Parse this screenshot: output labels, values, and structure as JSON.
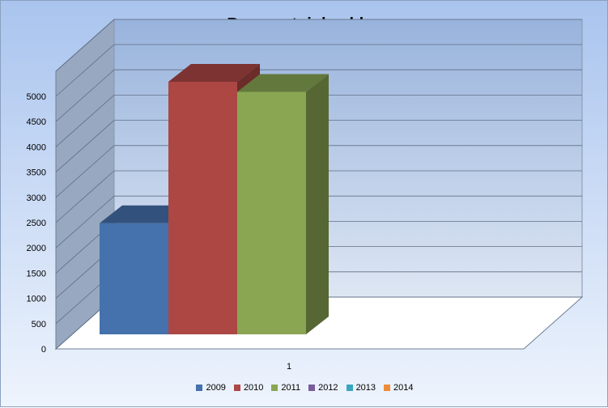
{
  "chart_data": {
    "type": "bar",
    "title": "Bronzentuinbeelden",
    "categories": [
      "1"
    ],
    "series": [
      {
        "name": "2009",
        "values": [
          2200
        ],
        "color": "#4571ac"
      },
      {
        "name": "2010",
        "values": [
          5000
        ],
        "color": "#ac4744"
      },
      {
        "name": "2011",
        "values": [
          4800
        ],
        "color": "#8aa653"
      },
      {
        "name": "2012",
        "values": [
          0
        ],
        "color": "#7a5c9b"
      },
      {
        "name": "2013",
        "values": [
          0
        ],
        "color": "#39a5c0"
      },
      {
        "name": "2014",
        "values": [
          0
        ],
        "color": "#ed8c39"
      }
    ],
    "ylim": [
      0,
      5000
    ],
    "y_ticks": [
      "0",
      "500",
      "1000",
      "1500",
      "2000",
      "2500",
      "3000",
      "3500",
      "4000",
      "4500",
      "5000"
    ],
    "grid": true,
    "legend_position": "bottom",
    "style": "3d-clustered-column"
  }
}
